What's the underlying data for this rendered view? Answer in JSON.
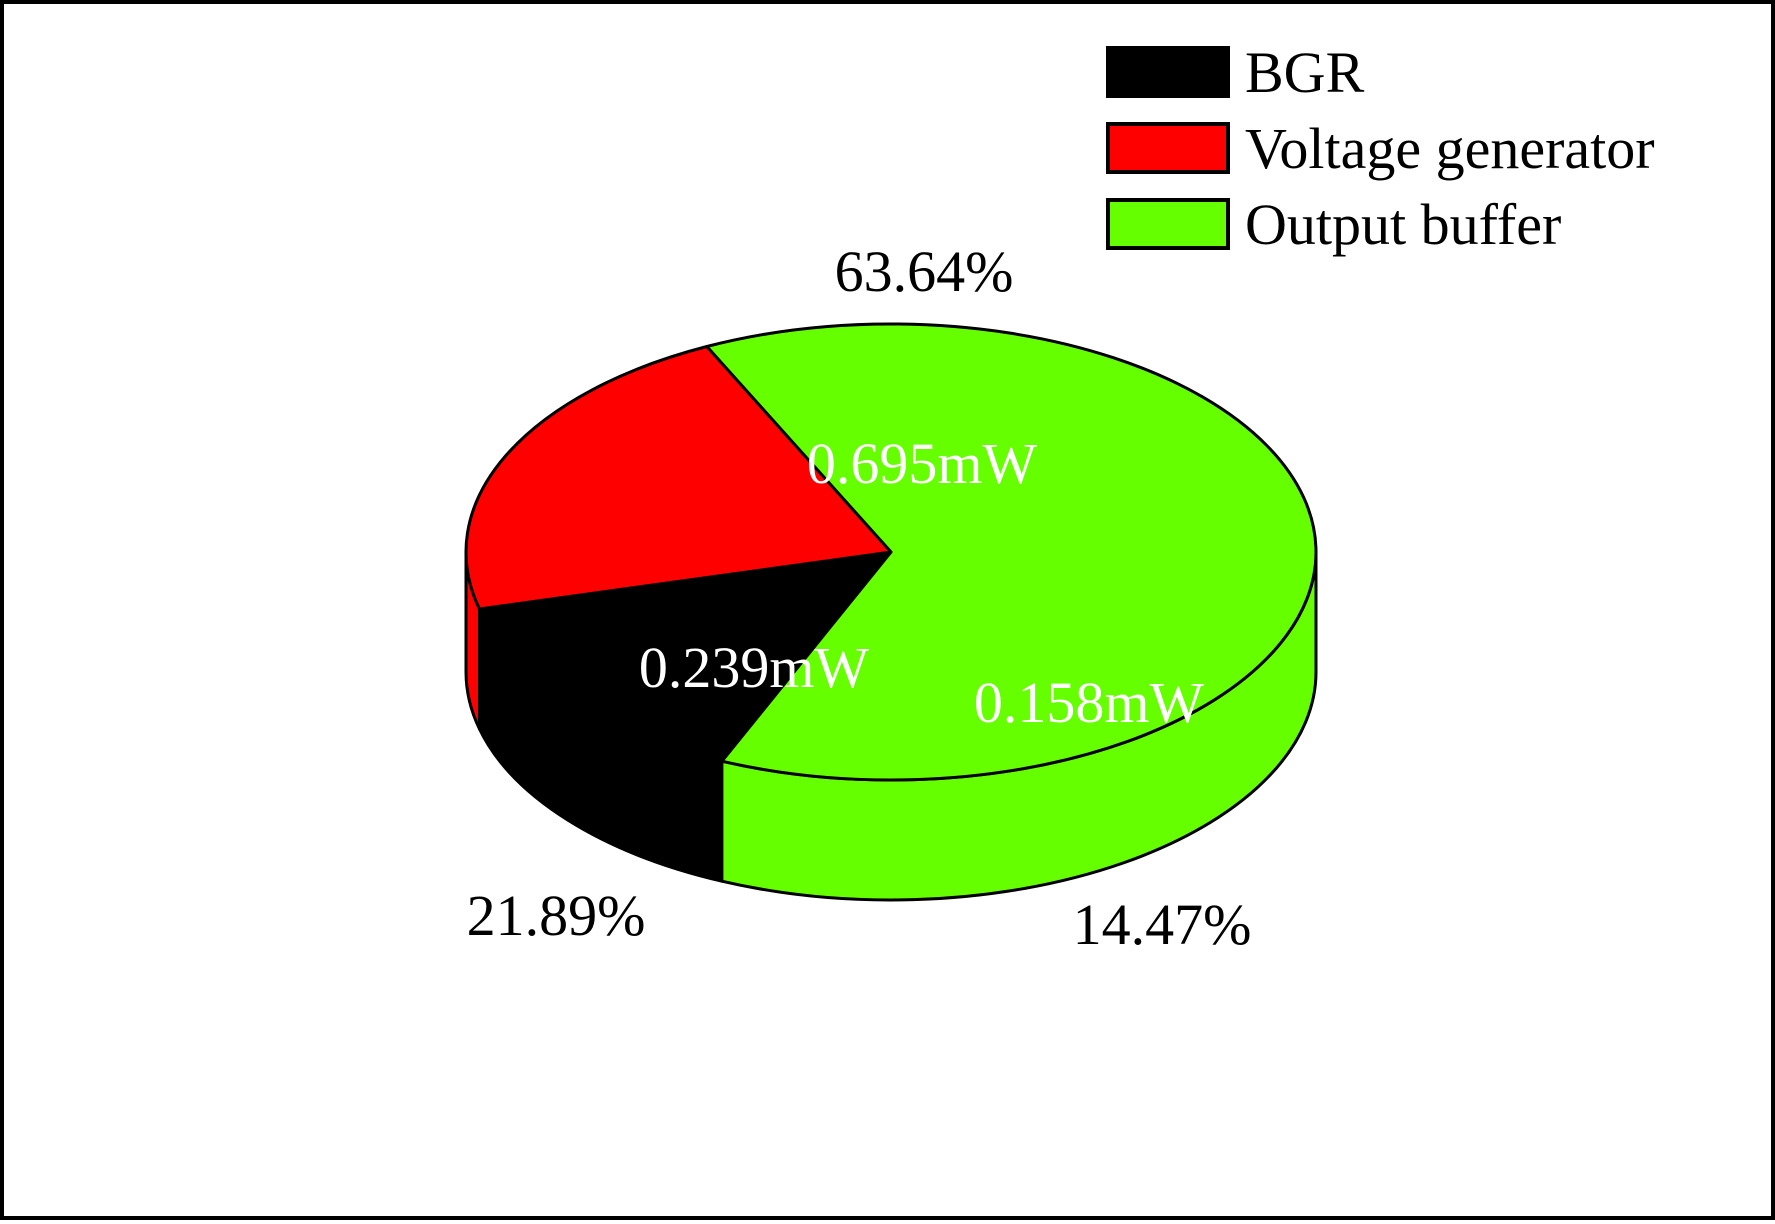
{
  "chart_data": {
    "type": "pie",
    "style": "3d",
    "title": "",
    "legend_position": "top-right",
    "slices": [
      {
        "name": "BGR",
        "value": 0.158,
        "value_label": "0.158mW",
        "percent": 14.47,
        "percent_label": "14.47%",
        "color": "#000000"
      },
      {
        "name": "Voltage generator",
        "value": 0.239,
        "value_label": "0.239mW",
        "percent": 21.89,
        "percent_label": "21.89%",
        "color": "#ff0000"
      },
      {
        "name": "Output buffer",
        "value": 0.695,
        "value_label": "0.695mW",
        "percent": 63.64,
        "percent_label": "63.64%",
        "color": "#66ff00"
      }
    ]
  }
}
